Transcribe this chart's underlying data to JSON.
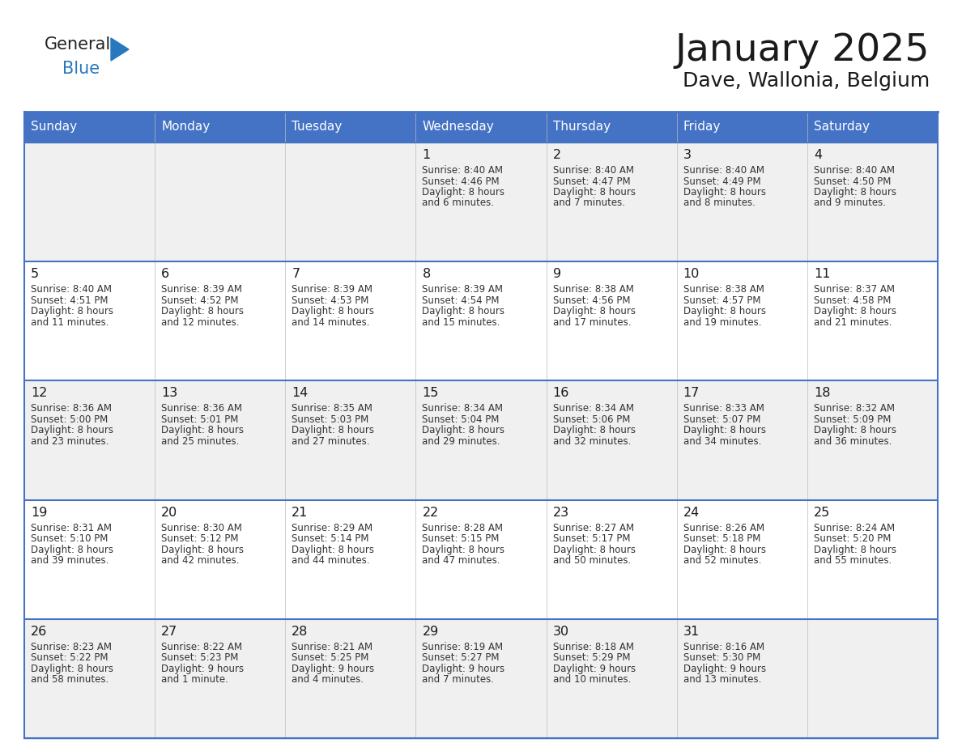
{
  "title": "January 2025",
  "subtitle": "Dave, Wallonia, Belgium",
  "header_color": "#4472C4",
  "header_text_color": "#FFFFFF",
  "days_of_week": [
    "Sunday",
    "Monday",
    "Tuesday",
    "Wednesday",
    "Thursday",
    "Friday",
    "Saturday"
  ],
  "weeks": [
    [
      {
        "day": "",
        "sunrise": "",
        "sunset": "",
        "daylight": ""
      },
      {
        "day": "",
        "sunrise": "",
        "sunset": "",
        "daylight": ""
      },
      {
        "day": "",
        "sunrise": "",
        "sunset": "",
        "daylight": ""
      },
      {
        "day": "1",
        "sunrise": "8:40 AM",
        "sunset": "4:46 PM",
        "daylight": "8 hours\nand 6 minutes."
      },
      {
        "day": "2",
        "sunrise": "8:40 AM",
        "sunset": "4:47 PM",
        "daylight": "8 hours\nand 7 minutes."
      },
      {
        "day": "3",
        "sunrise": "8:40 AM",
        "sunset": "4:49 PM",
        "daylight": "8 hours\nand 8 minutes."
      },
      {
        "day": "4",
        "sunrise": "8:40 AM",
        "sunset": "4:50 PM",
        "daylight": "8 hours\nand 9 minutes."
      }
    ],
    [
      {
        "day": "5",
        "sunrise": "8:40 AM",
        "sunset": "4:51 PM",
        "daylight": "8 hours\nand 11 minutes."
      },
      {
        "day": "6",
        "sunrise": "8:39 AM",
        "sunset": "4:52 PM",
        "daylight": "8 hours\nand 12 minutes."
      },
      {
        "day": "7",
        "sunrise": "8:39 AM",
        "sunset": "4:53 PM",
        "daylight": "8 hours\nand 14 minutes."
      },
      {
        "day": "8",
        "sunrise": "8:39 AM",
        "sunset": "4:54 PM",
        "daylight": "8 hours\nand 15 minutes."
      },
      {
        "day": "9",
        "sunrise": "8:38 AM",
        "sunset": "4:56 PM",
        "daylight": "8 hours\nand 17 minutes."
      },
      {
        "day": "10",
        "sunrise": "8:38 AM",
        "sunset": "4:57 PM",
        "daylight": "8 hours\nand 19 minutes."
      },
      {
        "day": "11",
        "sunrise": "8:37 AM",
        "sunset": "4:58 PM",
        "daylight": "8 hours\nand 21 minutes."
      }
    ],
    [
      {
        "day": "12",
        "sunrise": "8:36 AM",
        "sunset": "5:00 PM",
        "daylight": "8 hours\nand 23 minutes."
      },
      {
        "day": "13",
        "sunrise": "8:36 AM",
        "sunset": "5:01 PM",
        "daylight": "8 hours\nand 25 minutes."
      },
      {
        "day": "14",
        "sunrise": "8:35 AM",
        "sunset": "5:03 PM",
        "daylight": "8 hours\nand 27 minutes."
      },
      {
        "day": "15",
        "sunrise": "8:34 AM",
        "sunset": "5:04 PM",
        "daylight": "8 hours\nand 29 minutes."
      },
      {
        "day": "16",
        "sunrise": "8:34 AM",
        "sunset": "5:06 PM",
        "daylight": "8 hours\nand 32 minutes."
      },
      {
        "day": "17",
        "sunrise": "8:33 AM",
        "sunset": "5:07 PM",
        "daylight": "8 hours\nand 34 minutes."
      },
      {
        "day": "18",
        "sunrise": "8:32 AM",
        "sunset": "5:09 PM",
        "daylight": "8 hours\nand 36 minutes."
      }
    ],
    [
      {
        "day": "19",
        "sunrise": "8:31 AM",
        "sunset": "5:10 PM",
        "daylight": "8 hours\nand 39 minutes."
      },
      {
        "day": "20",
        "sunrise": "8:30 AM",
        "sunset": "5:12 PM",
        "daylight": "8 hours\nand 42 minutes."
      },
      {
        "day": "21",
        "sunrise": "8:29 AM",
        "sunset": "5:14 PM",
        "daylight": "8 hours\nand 44 minutes."
      },
      {
        "day": "22",
        "sunrise": "8:28 AM",
        "sunset": "5:15 PM",
        "daylight": "8 hours\nand 47 minutes."
      },
      {
        "day": "23",
        "sunrise": "8:27 AM",
        "sunset": "5:17 PM",
        "daylight": "8 hours\nand 50 minutes."
      },
      {
        "day": "24",
        "sunrise": "8:26 AM",
        "sunset": "5:18 PM",
        "daylight": "8 hours\nand 52 minutes."
      },
      {
        "day": "25",
        "sunrise": "8:24 AM",
        "sunset": "5:20 PM",
        "daylight": "8 hours\nand 55 minutes."
      }
    ],
    [
      {
        "day": "26",
        "sunrise": "8:23 AM",
        "sunset": "5:22 PM",
        "daylight": "8 hours\nand 58 minutes."
      },
      {
        "day": "27",
        "sunrise": "8:22 AM",
        "sunset": "5:23 PM",
        "daylight": "9 hours\nand 1 minute."
      },
      {
        "day": "28",
        "sunrise": "8:21 AM",
        "sunset": "5:25 PM",
        "daylight": "9 hours\nand 4 minutes."
      },
      {
        "day": "29",
        "sunrise": "8:19 AM",
        "sunset": "5:27 PM",
        "daylight": "9 hours\nand 7 minutes."
      },
      {
        "day": "30",
        "sunrise": "8:18 AM",
        "sunset": "5:29 PM",
        "daylight": "9 hours\nand 10 minutes."
      },
      {
        "day": "31",
        "sunrise": "8:16 AM",
        "sunset": "5:30 PM",
        "daylight": "9 hours\nand 13 minutes."
      },
      {
        "day": "",
        "sunrise": "",
        "sunset": "",
        "daylight": ""
      }
    ]
  ],
  "bg_color_odd": "#F0F0F0",
  "bg_color_even": "#FFFFFF",
  "border_color": "#4472C4",
  "text_color": "#333333",
  "logo_general_color": "#222222",
  "logo_blue_color": "#2878BE"
}
